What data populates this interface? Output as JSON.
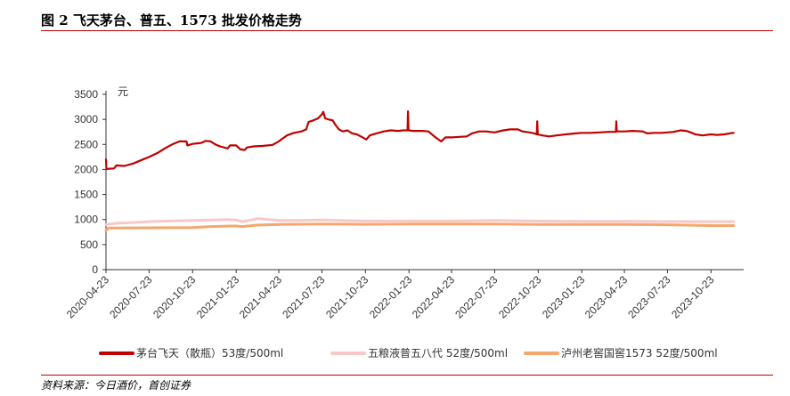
{
  "figure": {
    "title": "图 2  飞天茅台、普五、1573 批发价格走势",
    "source": "资料来源：今日酒价，首创证券"
  },
  "chart_data": {
    "type": "line",
    "unit_label": "元",
    "ylim": [
      0,
      3500
    ],
    "yticks": [
      0,
      500,
      1000,
      1500,
      2000,
      2500,
      3000,
      3500
    ],
    "xlim": [
      "2020-04-23",
      "2023-12-31"
    ],
    "xticks": [
      "2020-04-23",
      "2020-07-23",
      "2020-10-23",
      "2021-01-23",
      "2021-04-23",
      "2021-07-23",
      "2021-10-23",
      "2022-01-23",
      "2022-04-23",
      "2022-07-23",
      "2022-10-23",
      "2023-01-23",
      "2023-04-23",
      "2023-07-23",
      "2023-10-23"
    ],
    "grid": false,
    "legend_position": "bottom",
    "series": [
      {
        "name": "茅台飞天（散瓶）53度/500ml",
        "color": "#c00000",
        "points": [
          [
            "2020-04-23",
            2200
          ],
          [
            "2020-04-24",
            2010
          ],
          [
            "2020-05-10",
            2020
          ],
          [
            "2020-05-15",
            2080
          ],
          [
            "2020-06-01",
            2070
          ],
          [
            "2020-06-20",
            2120
          ],
          [
            "2020-07-10",
            2200
          ],
          [
            "2020-07-23",
            2250
          ],
          [
            "2020-08-10",
            2330
          ],
          [
            "2020-08-25",
            2420
          ],
          [
            "2020-09-10",
            2500
          ],
          [
            "2020-09-25",
            2560
          ],
          [
            "2020-10-10",
            2560
          ],
          [
            "2020-10-12",
            2480
          ],
          [
            "2020-10-23",
            2510
          ],
          [
            "2020-11-10",
            2530
          ],
          [
            "2020-11-20",
            2570
          ],
          [
            "2020-11-30",
            2560
          ],
          [
            "2020-12-10",
            2500
          ],
          [
            "2020-12-20",
            2460
          ],
          [
            "2021-01-05",
            2420
          ],
          [
            "2021-01-10",
            2480
          ],
          [
            "2021-01-23",
            2480
          ],
          [
            "2021-02-01",
            2400
          ],
          [
            "2021-02-10",
            2390
          ],
          [
            "2021-02-15",
            2440
          ],
          [
            "2021-03-01",
            2460
          ],
          [
            "2021-03-20",
            2470
          ],
          [
            "2021-04-10",
            2490
          ],
          [
            "2021-04-23",
            2560
          ],
          [
            "2021-05-10",
            2680
          ],
          [
            "2021-05-25",
            2730
          ],
          [
            "2021-06-10",
            2760
          ],
          [
            "2021-06-20",
            2800
          ],
          [
            "2021-06-25",
            2950
          ],
          [
            "2021-07-05",
            2980
          ],
          [
            "2021-07-15",
            3020
          ],
          [
            "2021-07-23",
            3100
          ],
          [
            "2021-07-26",
            3150
          ],
          [
            "2021-07-30",
            3020
          ],
          [
            "2021-08-05",
            3000
          ],
          [
            "2021-08-15",
            2980
          ],
          [
            "2021-08-20",
            2900
          ],
          [
            "2021-08-28",
            2800
          ],
          [
            "2021-09-05",
            2760
          ],
          [
            "2021-09-15",
            2780
          ],
          [
            "2021-09-25",
            2720
          ],
          [
            "2021-10-05",
            2700
          ],
          [
            "2021-10-15",
            2650
          ],
          [
            "2021-10-25",
            2600
          ],
          [
            "2021-11-01",
            2680
          ],
          [
            "2021-11-15",
            2720
          ],
          [
            "2021-12-01",
            2760
          ],
          [
            "2021-12-15",
            2780
          ],
          [
            "2022-01-01",
            2770
          ],
          [
            "2022-01-10",
            2780
          ],
          [
            "2022-01-20",
            2780
          ],
          [
            "2022-01-21",
            3160
          ],
          [
            "2022-01-22",
            2780
          ],
          [
            "2022-02-01",
            2770
          ],
          [
            "2022-02-20",
            2770
          ],
          [
            "2022-03-05",
            2760
          ],
          [
            "2022-03-20",
            2640
          ],
          [
            "2022-04-01",
            2560
          ],
          [
            "2022-04-10",
            2640
          ],
          [
            "2022-04-23",
            2640
          ],
          [
            "2022-05-10",
            2650
          ],
          [
            "2022-05-25",
            2660
          ],
          [
            "2022-06-05",
            2720
          ],
          [
            "2022-06-20",
            2760
          ],
          [
            "2022-07-05",
            2760
          ],
          [
            "2022-07-23",
            2740
          ],
          [
            "2022-08-10",
            2780
          ],
          [
            "2022-08-25",
            2800
          ],
          [
            "2022-09-10",
            2800
          ],
          [
            "2022-09-20",
            2760
          ],
          [
            "2022-10-05",
            2740
          ],
          [
            "2022-10-15",
            2720
          ],
          [
            "2022-10-20",
            2700
          ],
          [
            "2022-10-21",
            2960
          ],
          [
            "2022-10-22",
            2700
          ],
          [
            "2022-11-01",
            2680
          ],
          [
            "2022-11-15",
            2660
          ],
          [
            "2022-12-01",
            2680
          ],
          [
            "2022-12-20",
            2700
          ],
          [
            "2023-01-10",
            2720
          ],
          [
            "2023-01-23",
            2730
          ],
          [
            "2023-02-10",
            2730
          ],
          [
            "2023-03-01",
            2740
          ],
          [
            "2023-03-20",
            2750
          ],
          [
            "2023-04-05",
            2750
          ],
          [
            "2023-04-06",
            2960
          ],
          [
            "2023-04-07",
            2760
          ],
          [
            "2023-04-23",
            2760
          ],
          [
            "2023-05-10",
            2770
          ],
          [
            "2023-06-01",
            2760
          ],
          [
            "2023-06-10",
            2720
          ],
          [
            "2023-06-25",
            2730
          ],
          [
            "2023-07-10",
            2730
          ],
          [
            "2023-07-23",
            2740
          ],
          [
            "2023-08-05",
            2750
          ],
          [
            "2023-08-20",
            2780
          ],
          [
            "2023-09-01",
            2770
          ],
          [
            "2023-09-10",
            2740
          ],
          [
            "2023-09-20",
            2700
          ],
          [
            "2023-10-05",
            2680
          ],
          [
            "2023-10-23",
            2700
          ],
          [
            "2023-11-05",
            2690
          ],
          [
            "2023-11-20",
            2700
          ],
          [
            "2023-12-01",
            2720
          ],
          [
            "2023-12-10",
            2730
          ]
        ]
      },
      {
        "name": "五粮液普五八代 52度/500ml",
        "color": "#f8c8c8",
        "points": [
          [
            "2020-04-23",
            900
          ],
          [
            "2020-05-20",
            930
          ],
          [
            "2020-06-20",
            940
          ],
          [
            "2020-07-23",
            960
          ],
          [
            "2020-09-01",
            970
          ],
          [
            "2020-10-23",
            980
          ],
          [
            "2020-12-01",
            990
          ],
          [
            "2021-01-05",
            1000
          ],
          [
            "2021-01-23",
            990
          ],
          [
            "2021-02-05",
            960
          ],
          [
            "2021-03-01",
            1000
          ],
          [
            "2021-03-10",
            1020
          ],
          [
            "2021-04-23",
            980
          ],
          [
            "2021-06-01",
            980
          ],
          [
            "2021-07-23",
            990
          ],
          [
            "2021-10-23",
            970
          ],
          [
            "2022-01-23",
            970
          ],
          [
            "2022-04-23",
            970
          ],
          [
            "2022-07-23",
            980
          ],
          [
            "2022-10-23",
            970
          ],
          [
            "2023-01-23",
            965
          ],
          [
            "2023-04-23",
            965
          ],
          [
            "2023-07-23",
            960
          ],
          [
            "2023-10-23",
            960
          ],
          [
            "2023-12-10",
            960
          ]
        ]
      },
      {
        "name": "泸州老窖国窖1573 52度/500ml",
        "color": "#f5a66a",
        "points": [
          [
            "2020-04-23",
            780
          ],
          [
            "2020-04-28",
            830
          ],
          [
            "2020-07-23",
            835
          ],
          [
            "2020-10-23",
            840
          ],
          [
            "2020-12-01",
            860
          ],
          [
            "2021-01-10",
            870
          ],
          [
            "2021-01-23",
            870
          ],
          [
            "2021-02-05",
            860
          ],
          [
            "2021-03-10",
            890
          ],
          [
            "2021-04-23",
            900
          ],
          [
            "2021-07-23",
            910
          ],
          [
            "2021-10-23",
            905
          ],
          [
            "2022-01-23",
            910
          ],
          [
            "2022-04-23",
            910
          ],
          [
            "2022-07-23",
            910
          ],
          [
            "2022-10-23",
            900
          ],
          [
            "2023-01-23",
            900
          ],
          [
            "2023-04-23",
            900
          ],
          [
            "2023-07-23",
            895
          ],
          [
            "2023-10-23",
            880
          ],
          [
            "2023-12-10",
            880
          ]
        ]
      }
    ]
  }
}
